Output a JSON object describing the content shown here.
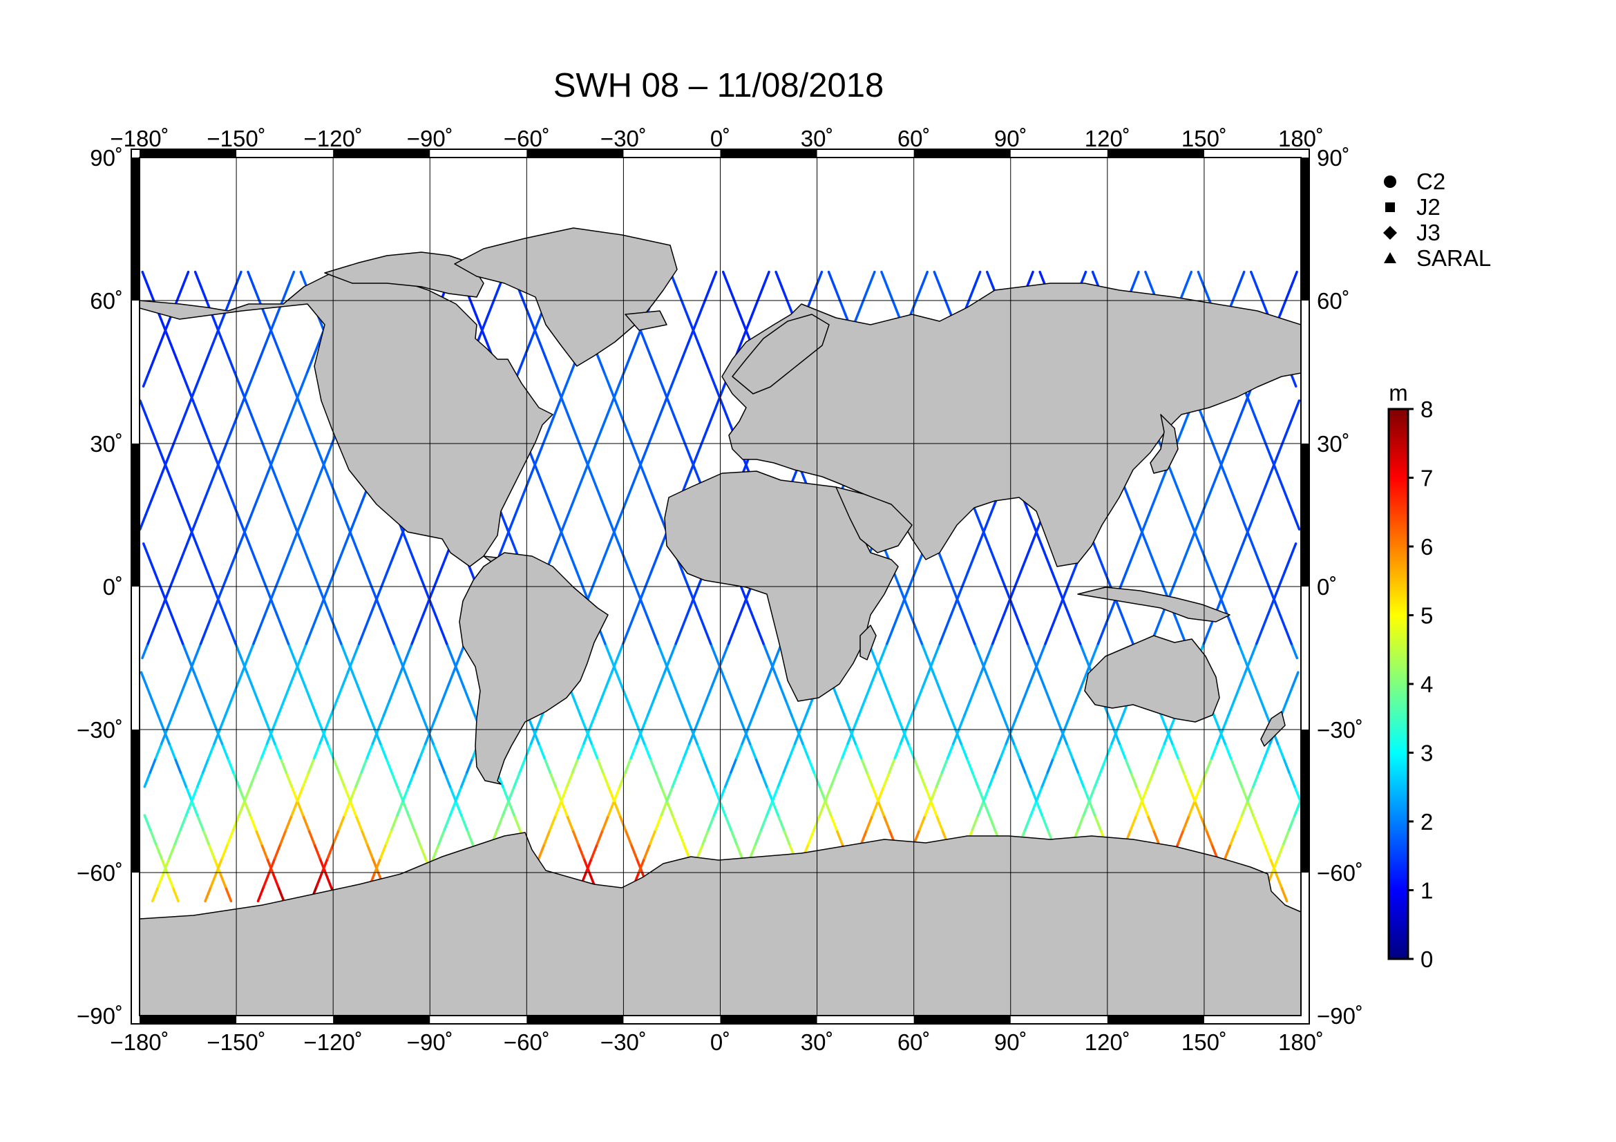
{
  "title": "SWH 08 – 11/08/2018",
  "map": {
    "projection": "equirectangular",
    "lon_range": [
      -180,
      180
    ],
    "lat_range": [
      -90,
      90
    ],
    "grid_step_deg": 30,
    "land_color": "#c0c0c0",
    "ocean_color": "#ffffff",
    "frame_color": "#000000"
  },
  "axes": {
    "lon_ticks": [
      "−180˚",
      "−150˚",
      "−120˚",
      "−90˚",
      "−60˚",
      "−30˚",
      "0˚",
      "30˚",
      "60˚",
      "90˚",
      "120˚",
      "150˚",
      "180˚"
    ],
    "lat_ticks_left": [
      "90˚",
      "60˚",
      "30˚",
      "0˚",
      "−30˚",
      "−60˚",
      "−90˚"
    ],
    "lat_ticks_right": [
      "90˚",
      "60˚",
      "30˚",
      "0˚",
      "−30˚",
      "−60˚",
      "−90˚"
    ]
  },
  "legend": {
    "items": [
      {
        "label": "C2",
        "symbol": "circle"
      },
      {
        "label": "J2",
        "symbol": "square"
      },
      {
        "label": "J3",
        "symbol": "diamond"
      },
      {
        "label": "SARAL",
        "symbol": "triangle"
      }
    ]
  },
  "colorbar": {
    "unit": "m",
    "min": 0,
    "max": 8,
    "ticks": [
      "0",
      "1",
      "2",
      "3",
      "4",
      "5",
      "6",
      "7",
      "8"
    ],
    "colormap": "jet",
    "stops": [
      "#00007f",
      "#0000ff",
      "#007fff",
      "#00ffff",
      "#7fff7f",
      "#ffff00",
      "#ff7f00",
      "#ff0000",
      "#7f0000"
    ]
  }
}
